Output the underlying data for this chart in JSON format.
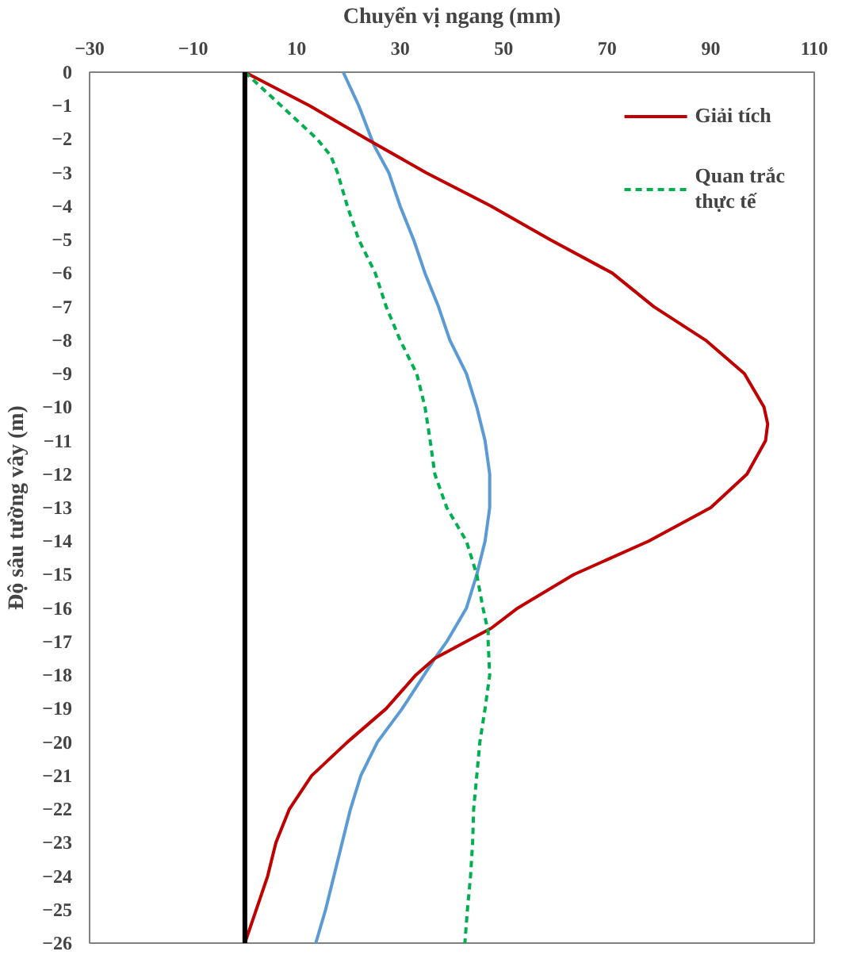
{
  "chart_data": {
    "type": "line",
    "xlabel": "Chuyển vị ngang (mm)",
    "ylabel": "Độ sâu tường vây (m)",
    "xlim": [
      -30,
      110
    ],
    "xticks": [
      -30,
      -10,
      10,
      30,
      50,
      70,
      90,
      110
    ],
    "ylim": [
      -26,
      0
    ],
    "yticks": [
      0,
      -1,
      -2,
      -3,
      -4,
      -5,
      -6,
      -7,
      -8,
      -9,
      -10,
      -11,
      -12,
      -13,
      -14,
      -15,
      -16,
      -17,
      -18,
      -19,
      -20,
      -21,
      -22,
      -23,
      -24,
      -25,
      -26
    ],
    "grid": false,
    "legend": "top right",
    "line_style": "solid",
    "ref_lines": [
      {
        "axis": "x",
        "value": 0,
        "color": "#000000"
      }
    ],
    "series": [
      {
        "color": "#5b9bd5",
        "x": [
          19,
          22,
          25,
          27.8,
          30,
          32.6,
          34.8,
          37.4,
          39.6,
          42.8,
          44.8,
          46.4,
          47.3,
          47.3,
          46.4,
          44.8,
          42.8,
          39,
          36.7,
          30.4,
          25.6,
          22.4,
          20.4,
          18.8,
          17.2,
          15.6,
          13.7
        ],
        "values": [
          0,
          -1,
          -2.2,
          -3,
          -4,
          -5,
          -6,
          -7,
          -8,
          -9,
          -10,
          -11,
          -12,
          -13,
          -14,
          -15,
          -16,
          -17,
          -17.5,
          -19,
          -20,
          -21,
          -22,
          -23,
          -24,
          -25,
          -26
        ]
      },
      {
        "name": "Giải tích",
        "color": "#c00000",
        "x": [
          0,
          12.5,
          23.6,
          35,
          47.6,
          59,
          71,
          79,
          89,
          96.5,
          100.3,
          101,
          100.6,
          97,
          90,
          78,
          63.5,
          52.7,
          47.6,
          42.7,
          36.7,
          33,
          27.3,
          19.8,
          12.9,
          8.6,
          6,
          4.4,
          2.2,
          0
        ],
        "values": [
          0,
          -1,
          -2,
          -3,
          -4,
          -5,
          -6,
          -7,
          -8,
          -9,
          -10,
          -10.5,
          -11,
          -12,
          -13,
          -14,
          -15,
          -16,
          -16.6,
          -17,
          -17.5,
          -18,
          -19,
          -20,
          -21,
          -22,
          -23,
          -24,
          -25,
          -26
        ]
      },
      {
        "name": "Quan trắc\nthực tế",
        "color": "#00b050",
        "line_style": "dashed",
        "x": [
          0,
          7,
          14,
          16.6,
          17.9,
          19.8,
          22,
          25.2,
          27.3,
          30,
          33.2,
          34.8,
          35.8,
          36.7,
          39,
          42.8,
          44.8,
          46,
          47,
          47,
          47.3,
          46.4,
          45.4,
          44.8,
          44.2,
          44,
          43.6,
          43,
          42.5
        ],
        "values": [
          0,
          -1,
          -2,
          -2.5,
          -3,
          -4,
          -5,
          -6,
          -7,
          -8,
          -9,
          -10,
          -11,
          -12,
          -13,
          -14,
          -15,
          -16,
          -16.7,
          -17,
          -18,
          -19,
          -20,
          -21,
          -22,
          -23,
          -24,
          -25,
          -26
        ]
      }
    ]
  }
}
